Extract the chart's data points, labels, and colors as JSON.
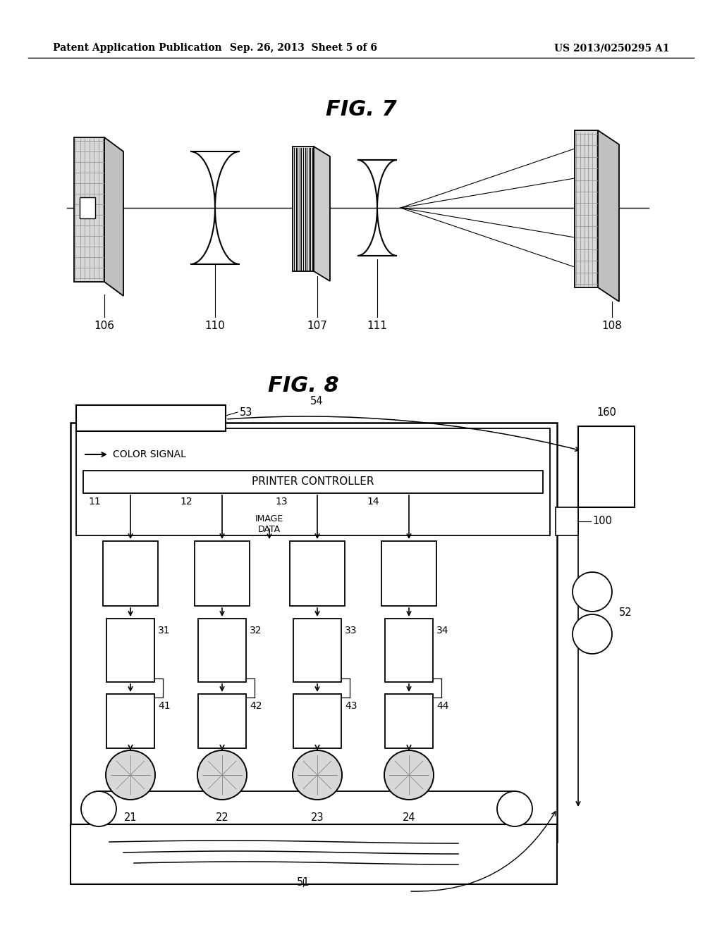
{
  "fig_width": 10.24,
  "fig_height": 13.2,
  "bg_color": "#ffffff",
  "header_left": "Patent Application Publication",
  "header_center": "Sep. 26, 2013  Sheet 5 of 6",
  "header_right": "US 2013/0250295 A1"
}
